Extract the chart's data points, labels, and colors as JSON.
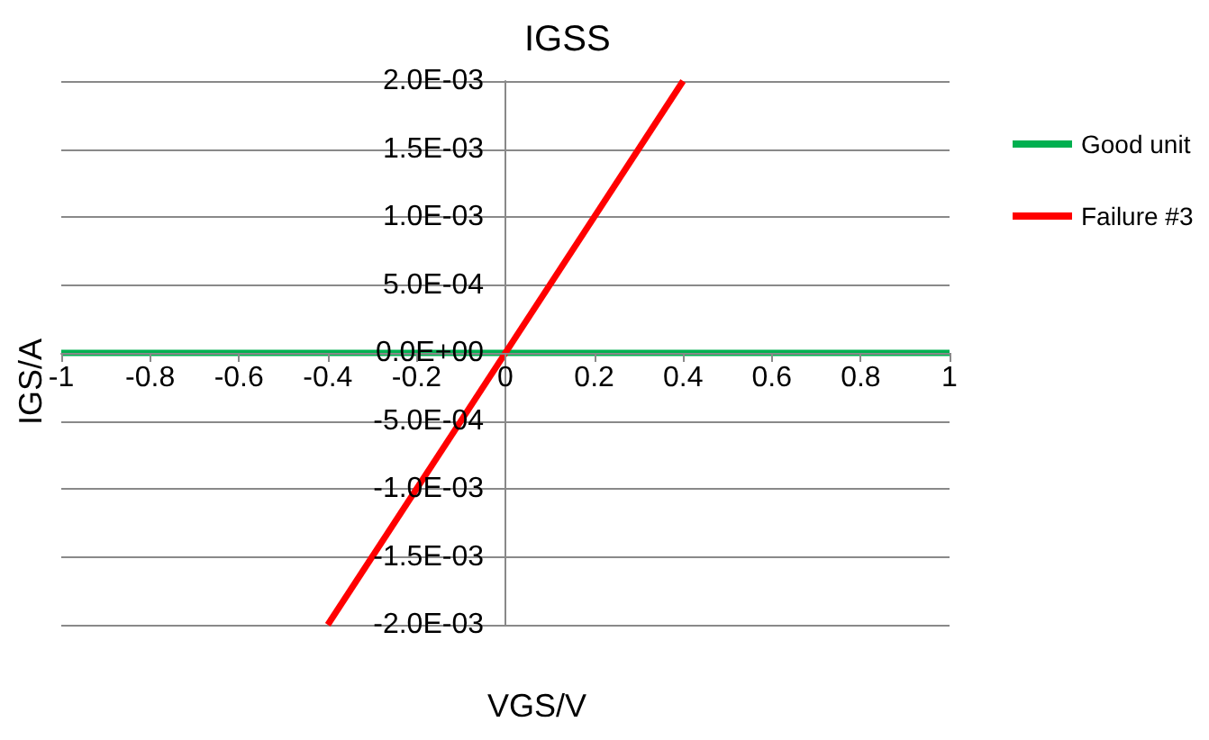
{
  "chart_data": {
    "type": "line",
    "title": "IGSS",
    "xlabel": "VGS/V",
    "ylabel": "IGS/A",
    "series": [
      {
        "name": "Good unit",
        "color": "#00b050",
        "x": [
          -1,
          1
        ],
        "values": [
          0,
          0
        ]
      },
      {
        "name": "Failure #3",
        "color": "#ff0000",
        "x": [
          -0.4,
          0.4
        ],
        "values": [
          -0.002,
          0.002
        ]
      }
    ],
    "xlim": [
      -1,
      1
    ],
    "xticks": [
      -1,
      -0.8,
      -0.6,
      -0.4,
      -0.2,
      0,
      0.2,
      0.4,
      0.6,
      0.8,
      1
    ],
    "ylim": [
      -0.002,
      0.002
    ],
    "yticks": [
      {
        "value": -0.002,
        "label": "-2.0E-03"
      },
      {
        "value": -0.0015,
        "label": "-1.5E-03"
      },
      {
        "value": -0.001,
        "label": "-1.0E-03"
      },
      {
        "value": -0.0005,
        "label": "-5.0E-04"
      },
      {
        "value": 0,
        "label": "0.0E+00"
      },
      {
        "value": 0.0005,
        "label": "5.0E-04"
      },
      {
        "value": 0.001,
        "label": "1.0E-03"
      },
      {
        "value": 0.0015,
        "label": "1.5E-03"
      },
      {
        "value": 0.002,
        "label": "2.0E-03"
      }
    ],
    "grid": "y",
    "legend": "right",
    "marker": "none",
    "line_style": "solid"
  }
}
